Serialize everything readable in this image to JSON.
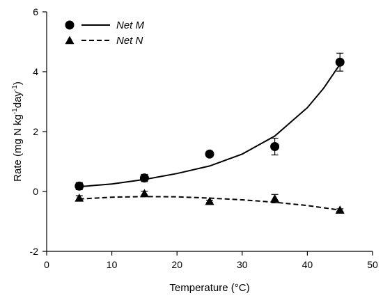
{
  "chart_data": {
    "type": "scatter",
    "xlabel": "Temperature (°C)",
    "ylabel_parts": [
      "Rate (mg N kg",
      "-1",
      "day",
      "-1",
      ")"
    ],
    "xlim": [
      0,
      50
    ],
    "ylim": [
      -2,
      6
    ],
    "x_ticks": [
      0,
      10,
      20,
      30,
      40,
      50
    ],
    "y_ticks": [
      -2,
      0,
      2,
      4,
      6
    ],
    "grid": false,
    "legend_position": "top-left",
    "series": [
      {
        "name": "Net M",
        "marker": "circle",
        "line_style": "solid",
        "points": [
          {
            "x": 5,
            "y": 0.18,
            "err": 0.12
          },
          {
            "x": 15,
            "y": 0.45,
            "err": 0.12
          },
          {
            "x": 25,
            "y": 1.25,
            "err": 0.05
          },
          {
            "x": 35,
            "y": 1.5,
            "err": 0.28
          },
          {
            "x": 45,
            "y": 4.32,
            "err": 0.3
          }
        ],
        "fit": [
          {
            "x": 5,
            "y": 0.16
          },
          {
            "x": 10,
            "y": 0.25
          },
          {
            "x": 15,
            "y": 0.4
          },
          {
            "x": 20,
            "y": 0.6
          },
          {
            "x": 25,
            "y": 0.85
          },
          {
            "x": 30,
            "y": 1.25
          },
          {
            "x": 35,
            "y": 1.85
          },
          {
            "x": 40,
            "y": 2.8
          },
          {
            "x": 42.5,
            "y": 3.45
          },
          {
            "x": 45,
            "y": 4.25
          }
        ]
      },
      {
        "name": "Net N",
        "marker": "triangle",
        "line_style": "dashed",
        "points": [
          {
            "x": 5,
            "y": -0.22,
            "err": 0.08
          },
          {
            "x": 15,
            "y": -0.07,
            "err": 0.08
          },
          {
            "x": 25,
            "y": -0.33,
            "err": 0.04
          },
          {
            "x": 35,
            "y": -0.24,
            "err": 0.14
          },
          {
            "x": 45,
            "y": -0.62,
            "err": 0.04
          }
        ],
        "fit": [
          {
            "x": 5,
            "y": -0.25
          },
          {
            "x": 10,
            "y": -0.19
          },
          {
            "x": 15,
            "y": -0.17
          },
          {
            "x": 20,
            "y": -0.18
          },
          {
            "x": 25,
            "y": -0.22
          },
          {
            "x": 30,
            "y": -0.28
          },
          {
            "x": 35,
            "y": -0.36
          },
          {
            "x": 40,
            "y": -0.47
          },
          {
            "x": 45,
            "y": -0.62
          }
        ]
      }
    ]
  }
}
